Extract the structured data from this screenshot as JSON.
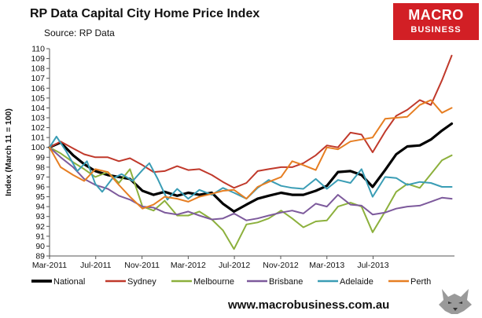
{
  "header": {
    "title": "RP Data Capital City Home Price Index",
    "source": "Source: RP Data"
  },
  "logo": {
    "top": "MACRO",
    "bottom": "BUSINESS"
  },
  "footer": {
    "url": "www.macrobusiness.com.au",
    "mascot_icon": "wolf-icon"
  },
  "chart_data": {
    "type": "line",
    "title": "RP Data Capital City Home Price Index",
    "ylabel": "Index (March 11 = 100)",
    "xlabel": "",
    "ylim": [
      89,
      110
    ],
    "y_ticks": [
      89,
      90,
      91,
      92,
      93,
      94,
      95,
      96,
      97,
      98,
      99,
      100,
      101,
      102,
      103,
      104,
      105,
      106,
      107,
      108,
      109,
      110
    ],
    "x_ticks": [
      {
        "label": "Mar-2011",
        "x": 2011.0
      },
      {
        "label": "Jul-2011",
        "x": 2011.333
      },
      {
        "label": "Nov-2011",
        "x": 2011.667
      },
      {
        "label": "Mar-2012",
        "x": 2012.0
      },
      {
        "label": "Jul-2012",
        "x": 2012.333
      },
      {
        "label": "Nov-2012",
        "x": 2012.667
      },
      {
        "label": "Mar-2013",
        "x": 2013.0
      },
      {
        "label": "Jul-2013",
        "x": 2013.333
      }
    ],
    "xlim": [
      2011.0,
      2013.92
    ],
    "grid": false,
    "legend_position": "bottom",
    "series": [
      {
        "name": "National",
        "color": "#000000",
        "width": 3.2,
        "points": [
          [
            2011.0,
            100
          ],
          [
            2011.08,
            100.5
          ],
          [
            2011.17,
            99.2
          ],
          [
            2011.25,
            98.3
          ],
          [
            2011.33,
            97.6
          ],
          [
            2011.42,
            97.2
          ],
          [
            2011.5,
            97.0
          ],
          [
            2011.58,
            96.8
          ],
          [
            2011.67,
            95.6
          ],
          [
            2011.75,
            95.2
          ],
          [
            2011.83,
            95.5
          ],
          [
            2011.92,
            95.1
          ],
          [
            2012.0,
            95.4
          ],
          [
            2012.08,
            95.2
          ],
          [
            2012.17,
            95.4
          ],
          [
            2012.25,
            94.3
          ],
          [
            2012.33,
            93.5
          ],
          [
            2012.42,
            94.2
          ],
          [
            2012.5,
            94.8
          ],
          [
            2012.58,
            95.1
          ],
          [
            2012.67,
            95.4
          ],
          [
            2012.75,
            95.2
          ],
          [
            2012.83,
            95.2
          ],
          [
            2012.92,
            95.6
          ],
          [
            2013.0,
            96.1
          ],
          [
            2013.08,
            97.5
          ],
          [
            2013.17,
            97.6
          ],
          [
            2013.25,
            97.2
          ],
          [
            2013.33,
            96.0
          ],
          [
            2013.42,
            97.7
          ],
          [
            2013.5,
            99.3
          ],
          [
            2013.58,
            100.1
          ],
          [
            2013.67,
            100.2
          ],
          [
            2013.75,
            100.8
          ],
          [
            2013.83,
            101.7
          ],
          [
            2013.9,
            102.4
          ]
        ]
      },
      {
        "name": "Sydney",
        "color": "#c0392b",
        "width": 2,
        "points": [
          [
            2011.0,
            100
          ],
          [
            2011.08,
            100.6
          ],
          [
            2011.17,
            99.9
          ],
          [
            2011.25,
            99.3
          ],
          [
            2011.33,
            99.0
          ],
          [
            2011.42,
            99.0
          ],
          [
            2011.5,
            98.6
          ],
          [
            2011.58,
            98.9
          ],
          [
            2011.67,
            98.2
          ],
          [
            2011.75,
            97.5
          ],
          [
            2011.83,
            97.6
          ],
          [
            2011.92,
            98.1
          ],
          [
            2012.0,
            97.7
          ],
          [
            2012.08,
            97.8
          ],
          [
            2012.17,
            97.2
          ],
          [
            2012.25,
            96.5
          ],
          [
            2012.33,
            95.9
          ],
          [
            2012.42,
            96.4
          ],
          [
            2012.5,
            97.6
          ],
          [
            2012.58,
            97.8
          ],
          [
            2012.67,
            98.0
          ],
          [
            2012.75,
            98.0
          ],
          [
            2012.83,
            98.4
          ],
          [
            2012.92,
            99.2
          ],
          [
            2013.0,
            100.2
          ],
          [
            2013.08,
            100.0
          ],
          [
            2013.17,
            101.5
          ],
          [
            2013.25,
            101.3
          ],
          [
            2013.33,
            99.5
          ],
          [
            2013.42,
            101.6
          ],
          [
            2013.5,
            103.2
          ],
          [
            2013.58,
            103.8
          ],
          [
            2013.67,
            104.8
          ],
          [
            2013.75,
            104.3
          ],
          [
            2013.83,
            106.8
          ],
          [
            2013.9,
            109.3
          ]
        ]
      },
      {
        "name": "Melbourne",
        "color": "#8cb03c",
        "width": 2,
        "points": [
          [
            2011.0,
            100
          ],
          [
            2011.08,
            99.4
          ],
          [
            2011.17,
            98.5
          ],
          [
            2011.25,
            97.8
          ],
          [
            2011.33,
            97.0
          ],
          [
            2011.42,
            97.5
          ],
          [
            2011.5,
            96.4
          ],
          [
            2011.58,
            97.8
          ],
          [
            2011.67,
            94.0
          ],
          [
            2011.75,
            93.6
          ],
          [
            2011.83,
            94.6
          ],
          [
            2011.92,
            93.1
          ],
          [
            2012.0,
            93.1
          ],
          [
            2012.08,
            93.5
          ],
          [
            2012.17,
            92.7
          ],
          [
            2012.25,
            91.6
          ],
          [
            2012.33,
            89.7
          ],
          [
            2012.42,
            92.2
          ],
          [
            2012.5,
            92.4
          ],
          [
            2012.58,
            92.8
          ],
          [
            2012.67,
            93.6
          ],
          [
            2012.75,
            92.8
          ],
          [
            2012.83,
            91.9
          ],
          [
            2012.92,
            92.5
          ],
          [
            2013.0,
            92.6
          ],
          [
            2013.08,
            94.0
          ],
          [
            2013.17,
            94.4
          ],
          [
            2013.25,
            94.0
          ],
          [
            2013.33,
            91.4
          ],
          [
            2013.42,
            93.5
          ],
          [
            2013.5,
            95.5
          ],
          [
            2013.58,
            96.3
          ],
          [
            2013.67,
            95.9
          ],
          [
            2013.75,
            97.3
          ],
          [
            2013.83,
            98.7
          ],
          [
            2013.9,
            99.2
          ]
        ]
      },
      {
        "name": "Brisbane",
        "color": "#7d5a9c",
        "width": 2,
        "points": [
          [
            2011.0,
            100
          ],
          [
            2011.08,
            99.0
          ],
          [
            2011.17,
            98.0
          ],
          [
            2011.25,
            96.8
          ],
          [
            2011.33,
            96.2
          ],
          [
            2011.42,
            95.8
          ],
          [
            2011.5,
            95.1
          ],
          [
            2011.58,
            94.7
          ],
          [
            2011.67,
            94.0
          ],
          [
            2011.75,
            93.9
          ],
          [
            2011.83,
            93.4
          ],
          [
            2011.92,
            93.2
          ],
          [
            2012.0,
            93.5
          ],
          [
            2012.08,
            93.1
          ],
          [
            2012.17,
            92.7
          ],
          [
            2012.25,
            92.8
          ],
          [
            2012.33,
            93.3
          ],
          [
            2012.42,
            92.6
          ],
          [
            2012.5,
            92.8
          ],
          [
            2012.58,
            93.1
          ],
          [
            2012.67,
            93.4
          ],
          [
            2012.75,
            93.6
          ],
          [
            2012.83,
            93.3
          ],
          [
            2012.92,
            94.3
          ],
          [
            2013.0,
            94.0
          ],
          [
            2013.08,
            95.2
          ],
          [
            2013.17,
            94.2
          ],
          [
            2013.25,
            94.1
          ],
          [
            2013.33,
            93.2
          ],
          [
            2013.42,
            93.4
          ],
          [
            2013.5,
            93.8
          ],
          [
            2013.58,
            94.0
          ],
          [
            2013.67,
            94.1
          ],
          [
            2013.75,
            94.5
          ],
          [
            2013.83,
            94.9
          ],
          [
            2013.9,
            94.8
          ]
        ]
      },
      {
        "name": "Adelaide",
        "color": "#3a9db5",
        "width": 2,
        "points": [
          [
            2011.0,
            100
          ],
          [
            2011.05,
            101.1
          ],
          [
            2011.12,
            99.6
          ],
          [
            2011.2,
            97.6
          ],
          [
            2011.27,
            98.6
          ],
          [
            2011.33,
            96.3
          ],
          [
            2011.38,
            95.5
          ],
          [
            2011.45,
            96.8
          ],
          [
            2011.52,
            97.3
          ],
          [
            2011.6,
            96.6
          ],
          [
            2011.67,
            97.7
          ],
          [
            2011.72,
            98.4
          ],
          [
            2011.78,
            96.8
          ],
          [
            2011.85,
            94.7
          ],
          [
            2011.92,
            95.8
          ],
          [
            2012.0,
            94.8
          ],
          [
            2012.08,
            95.7
          ],
          [
            2012.17,
            95.2
          ],
          [
            2012.25,
            95.9
          ],
          [
            2012.33,
            95.4
          ],
          [
            2012.42,
            94.8
          ],
          [
            2012.5,
            95.9
          ],
          [
            2012.58,
            96.7
          ],
          [
            2012.67,
            96.1
          ],
          [
            2012.75,
            95.9
          ],
          [
            2012.83,
            95.8
          ],
          [
            2012.92,
            96.8
          ],
          [
            2013.0,
            95.8
          ],
          [
            2013.08,
            96.7
          ],
          [
            2013.17,
            96.4
          ],
          [
            2013.25,
            97.8
          ],
          [
            2013.33,
            95.0
          ],
          [
            2013.42,
            97.0
          ],
          [
            2013.5,
            96.9
          ],
          [
            2013.58,
            96.2
          ],
          [
            2013.67,
            96.5
          ],
          [
            2013.75,
            96.4
          ],
          [
            2013.83,
            96.0
          ],
          [
            2013.9,
            96.0
          ]
        ]
      },
      {
        "name": "Perth",
        "color": "#e67e22",
        "width": 2,
        "points": [
          [
            2011.0,
            100
          ],
          [
            2011.08,
            98.0
          ],
          [
            2011.17,
            97.2
          ],
          [
            2011.25,
            96.6
          ],
          [
            2011.33,
            97.8
          ],
          [
            2011.42,
            97.5
          ],
          [
            2011.5,
            96.2
          ],
          [
            2011.58,
            95.0
          ],
          [
            2011.67,
            93.8
          ],
          [
            2011.75,
            94.2
          ],
          [
            2011.83,
            95.0
          ],
          [
            2011.92,
            94.8
          ],
          [
            2012.0,
            94.5
          ],
          [
            2012.08,
            95.0
          ],
          [
            2012.17,
            95.3
          ],
          [
            2012.25,
            95.6
          ],
          [
            2012.33,
            95.7
          ],
          [
            2012.42,
            94.8
          ],
          [
            2012.5,
            96.0
          ],
          [
            2012.58,
            96.5
          ],
          [
            2012.67,
            97.0
          ],
          [
            2012.75,
            98.6
          ],
          [
            2012.83,
            98.2
          ],
          [
            2012.92,
            97.7
          ],
          [
            2013.0,
            100.0
          ],
          [
            2013.08,
            99.8
          ],
          [
            2013.17,
            100.6
          ],
          [
            2013.25,
            100.8
          ],
          [
            2013.33,
            101.0
          ],
          [
            2013.42,
            102.9
          ],
          [
            2013.5,
            103.0
          ],
          [
            2013.58,
            103.1
          ],
          [
            2013.67,
            104.3
          ],
          [
            2013.75,
            104.8
          ],
          [
            2013.83,
            103.5
          ],
          [
            2013.9,
            104.0
          ]
        ]
      }
    ]
  }
}
